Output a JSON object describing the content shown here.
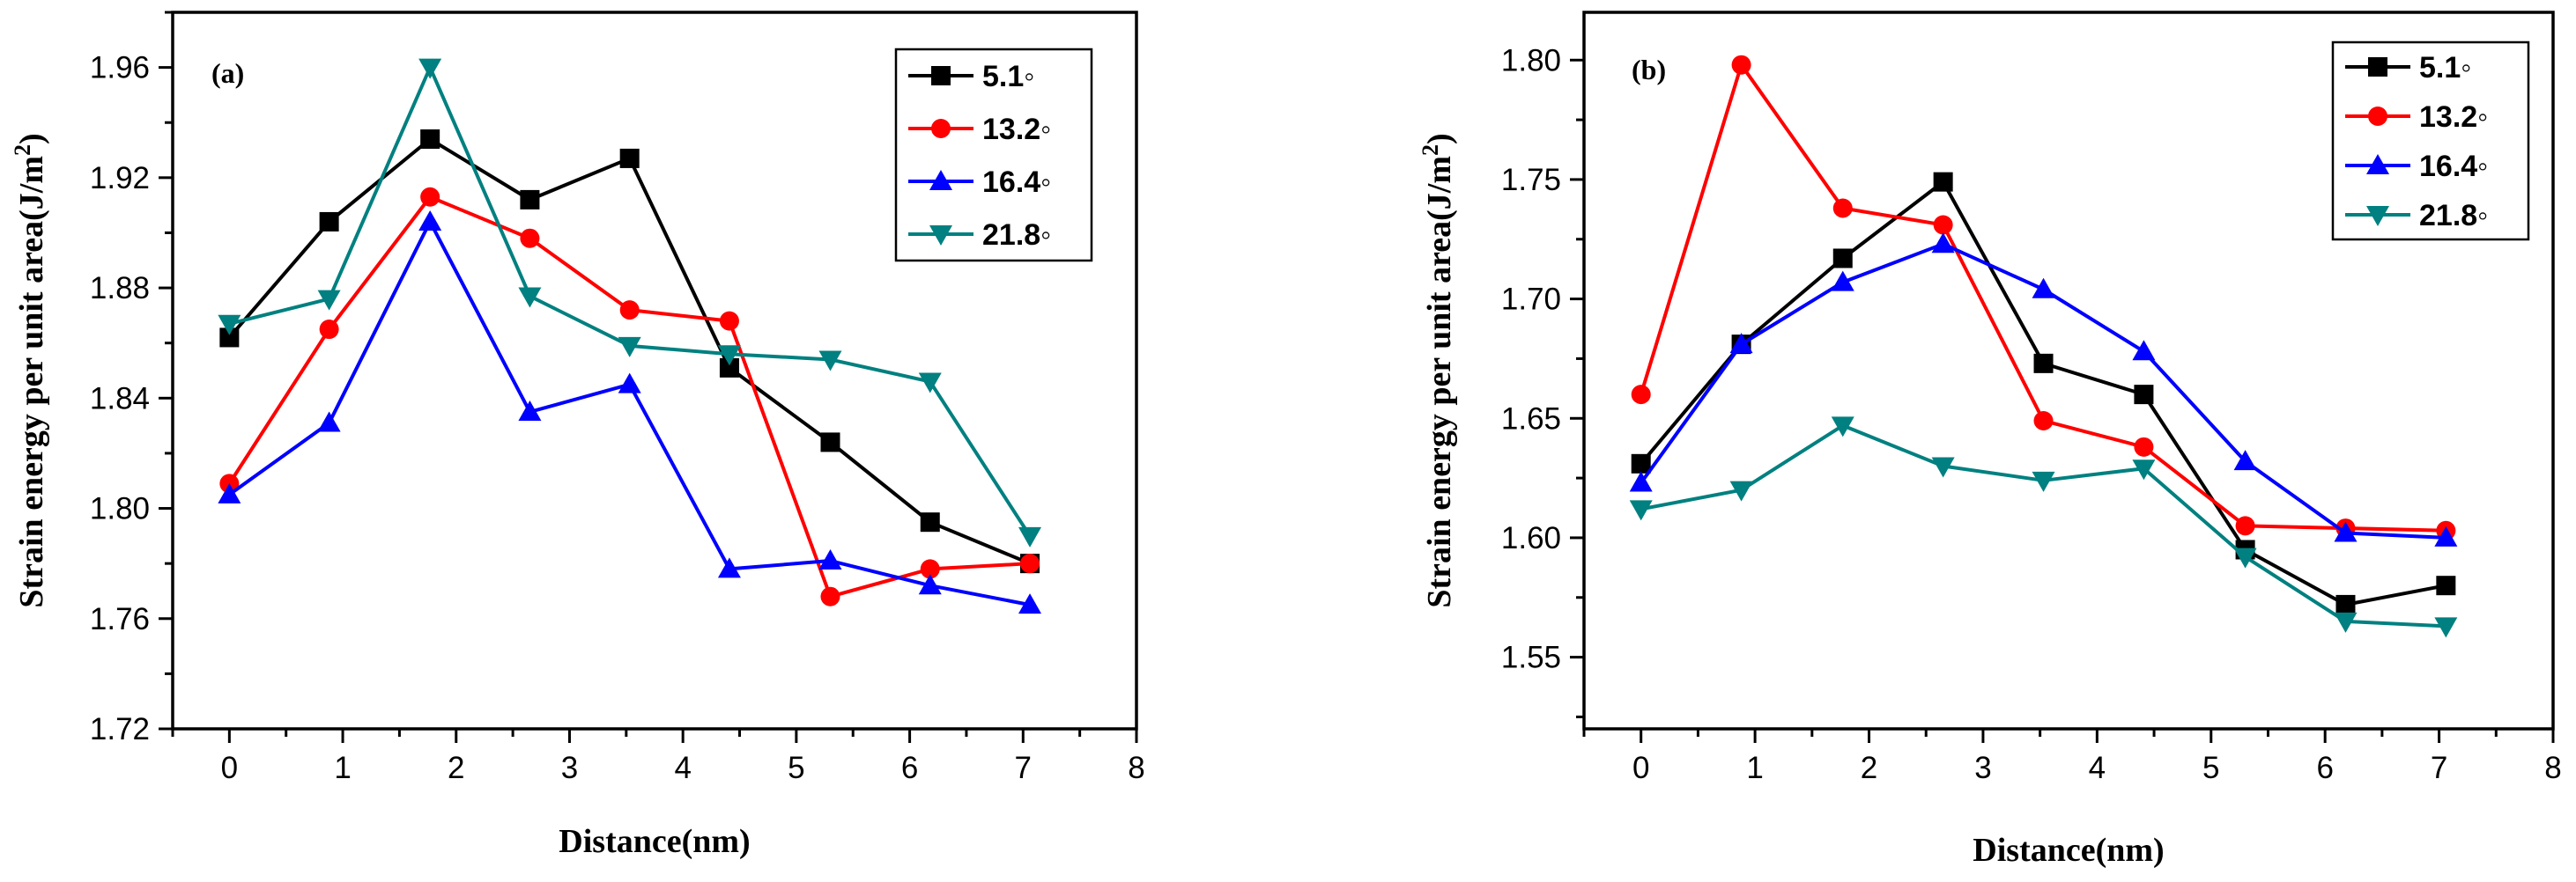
{
  "chart_data": [
    {
      "type": "line",
      "panel_label": "(a)",
      "xlabel": "Distance(nm)",
      "ylabel": "Strain energy per unit area(J/m",
      "ylabel_sup": "2",
      "ylabel_close": ")",
      "xlim": [
        -0.5,
        8
      ],
      "ylim": [
        1.72,
        1.98
      ],
      "xticks": [
        0,
        1,
        2,
        3,
        4,
        5,
        6,
        7,
        8
      ],
      "xtick_labels": [
        "0",
        "1",
        "2",
        "3",
        "4",
        "5",
        "6",
        "7",
        "8"
      ],
      "yticks": [
        1.72,
        1.76,
        1.8,
        1.84,
        1.88,
        1.92,
        1.96
      ],
      "ytick_labels": [
        "1.72",
        "1.76",
        "1.80",
        "1.84",
        "1.88",
        "1.92",
        "1.96"
      ],
      "legend_position": "top-right",
      "x": [
        0,
        0.88,
        1.77,
        2.65,
        3.53,
        4.41,
        5.3,
        6.18,
        7.06
      ],
      "series": [
        {
          "name": "5.1◦",
          "color": "#000000",
          "marker": "square",
          "values": [
            1.862,
            1.904,
            1.934,
            1.912,
            1.927,
            1.851,
            1.824,
            1.795,
            1.78
          ]
        },
        {
          "name": "13.2◦",
          "color": "#ff0000",
          "marker": "circle",
          "values": [
            1.809,
            1.865,
            1.913,
            1.898,
            1.872,
            1.868,
            1.768,
            1.778,
            1.78
          ]
        },
        {
          "name": "16.4◦",
          "color": "#0000ff",
          "marker": "triangle-up",
          "values": [
            1.805,
            1.831,
            1.904,
            1.835,
            1.845,
            1.778,
            1.781,
            1.772,
            1.765
          ]
        },
        {
          "name": "21.8◦",
          "color": "#008080",
          "marker": "triangle-down",
          "values": [
            1.867,
            1.876,
            1.96,
            1.877,
            1.859,
            1.856,
            1.854,
            1.846,
            1.79
          ]
        }
      ]
    },
    {
      "type": "line",
      "panel_label": "(b)",
      "xlabel": "Distance(nm)",
      "ylabel": "Strain energy per unit area(J/m",
      "ylabel_sup": "2",
      "ylabel_close": ")",
      "xlim": [
        -0.5,
        8
      ],
      "ylim": [
        1.52,
        1.82
      ],
      "xticks": [
        0,
        1,
        2,
        3,
        4,
        5,
        6,
        7,
        8
      ],
      "xtick_labels": [
        "0",
        "1",
        "2",
        "3",
        "4",
        "5",
        "6",
        "7",
        "8"
      ],
      "yticks": [
        1.55,
        1.6,
        1.65,
        1.7,
        1.75,
        1.8
      ],
      "ytick_labels": [
        "1.55",
        "1.60",
        "1.65",
        "1.70",
        "1.75",
        "1.80"
      ],
      "legend_position": "top-right",
      "x": [
        0,
        0.88,
        1.77,
        2.65,
        3.53,
        4.41,
        5.3,
        6.18,
        7.06
      ],
      "series": [
        {
          "name": "5.1◦",
          "color": "#000000",
          "marker": "square",
          "values": [
            1.631,
            1.681,
            1.717,
            1.749,
            1.673,
            1.66,
            1.595,
            1.572,
            1.58
          ]
        },
        {
          "name": "13.2◦",
          "color": "#ff0000",
          "marker": "circle",
          "values": [
            1.66,
            1.798,
            1.738,
            1.731,
            1.649,
            1.638,
            1.605,
            1.604,
            1.603
          ]
        },
        {
          "name": "16.4◦",
          "color": "#0000ff",
          "marker": "triangle-up",
          "values": [
            1.623,
            1.681,
            1.707,
            1.723,
            1.704,
            1.678,
            1.632,
            1.602,
            1.6
          ]
        },
        {
          "name": "21.8◦",
          "color": "#008080",
          "marker": "triangle-down",
          "values": [
            1.612,
            1.62,
            1.647,
            1.63,
            1.624,
            1.629,
            1.592,
            1.565,
            1.563
          ]
        }
      ]
    }
  ]
}
